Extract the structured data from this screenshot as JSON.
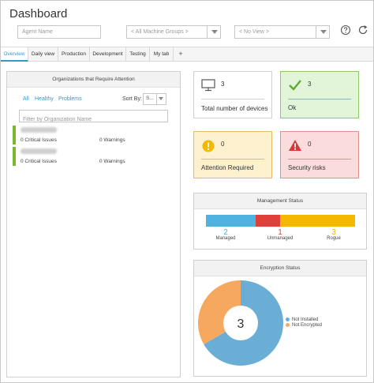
{
  "header": {
    "title": "Dashboard",
    "agent_name_placeholder": "Agent Name",
    "machine_groups_value": "< All Machine Groups >",
    "view_value": "< No View >",
    "help_icon": "question-circle-icon",
    "refresh_icon": "refresh-icon"
  },
  "tabs": [
    {
      "label": "Overview",
      "active": true
    },
    {
      "label": "Daily view",
      "active": false
    },
    {
      "label": "Production",
      "active": false
    },
    {
      "label": "Development",
      "active": false
    },
    {
      "label": "Testing",
      "active": false
    },
    {
      "label": "My tab",
      "active": false
    }
  ],
  "add_tab_label": "+",
  "organizations": {
    "title": "Organizations that Require Attention",
    "filters": [
      "All",
      "Healthy",
      "Problems"
    ],
    "sort_by_label": "Sort By:",
    "sort_by_value": "S...",
    "filter_placeholder": "Filter by Organization Name",
    "items": [
      {
        "issues": "0 Critical Issues",
        "warnings": "0 Warnings",
        "status_color": "#7cb82f"
      },
      {
        "issues": "0 Critical Issues",
        "warnings": "0 Warnings",
        "status_color": "#7cb82f"
      }
    ]
  },
  "tiles": {
    "total": {
      "count": "3",
      "label": "Total number of devices",
      "icon": "monitor-icon"
    },
    "ok": {
      "count": "3",
      "label": "Ok",
      "icon": "checkmark-icon"
    },
    "attention": {
      "count": "0",
      "label": "Attention Required",
      "icon": "exclamation-circle-icon"
    },
    "risks": {
      "count": "0",
      "label": "Security risks",
      "icon": "warning-triangle-icon"
    }
  },
  "management": {
    "title": "Management Status",
    "segments": [
      {
        "label": "Managed",
        "value": "2",
        "color": "#4fb3e0"
      },
      {
        "label": "Unmanaged",
        "value": "1",
        "color": "#e0403a"
      },
      {
        "label": "Rogue",
        "value": "3",
        "color": "#f5b800"
      }
    ]
  },
  "encryption": {
    "title": "Encryption Status",
    "total": "3",
    "legend": [
      {
        "label": "Not Installed",
        "value": 2,
        "color": "#6aaed6"
      },
      {
        "label": "Not Encrypted",
        "value": 1,
        "color": "#f6a85e"
      }
    ]
  }
}
